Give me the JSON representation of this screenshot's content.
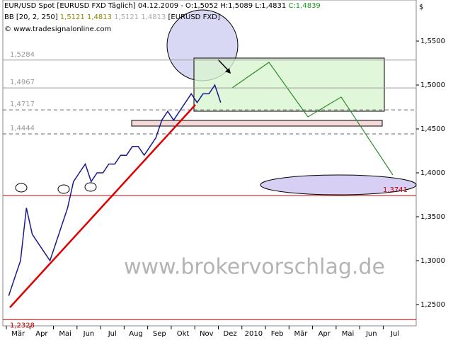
{
  "chart_data": {
    "type": "line",
    "header": {
      "line1": "EUR/USD Spot [EURUSD FXD  Täglich] 04.12.2009 - O:1,5052 H:1,5089 L:1,4831",
      "close": "C:1,4839",
      "indicator": "BB [20, 2, 250]",
      "bb_values": [
        "1,5121",
        "1,4813",
        "1,5121",
        "1,4813"
      ],
      "bb_symbol": "[EURUSD FXD]",
      "source": "© www.tradesignalonline.com"
    },
    "currency": "$",
    "watermark": "www.brokervorschlag.de",
    "categories": [
      "Mär",
      "Apr",
      "Mai",
      "Jun",
      "Jul",
      "Aug",
      "Sep",
      "Okt",
      "Nov",
      "Dez",
      "2010",
      "Feb",
      "Mär",
      "Apr",
      "Mai",
      "Jun",
      "Jul"
    ],
    "x": [
      0.1,
      0.35,
      0.6,
      0.85,
      1.1,
      1.35,
      1.6,
      1.85,
      2.1,
      2.35,
      2.6,
      2.85,
      3.1,
      3.35,
      3.6,
      3.85,
      4.1,
      4.35,
      4.6,
      4.85,
      5.1,
      5.35,
      5.6,
      5.85,
      6.1,
      6.35,
      6.6,
      6.85,
      7.1,
      7.35,
      7.6,
      7.85,
      8.1,
      8.35,
      8.6,
      8.85,
      9.1
    ],
    "series": [
      {
        "name": "EUR/USD",
        "color": "#1a1a8c",
        "values": [
          1.26,
          1.28,
          1.3,
          1.36,
          1.33,
          1.32,
          1.31,
          1.3,
          1.32,
          1.34,
          1.36,
          1.39,
          1.4,
          1.41,
          1.39,
          1.4,
          1.4,
          1.41,
          1.41,
          1.42,
          1.42,
          1.43,
          1.43,
          1.42,
          1.43,
          1.44,
          1.46,
          1.47,
          1.46,
          1.47,
          1.48,
          1.49,
          1.48,
          1.49,
          1.49,
          1.5,
          1.48
        ]
      }
    ],
    "levels": [
      {
        "value": 1.5284,
        "label": "1,5284",
        "color": "#999999",
        "dashed": false
      },
      {
        "value": 1.4967,
        "label": "1,4967",
        "color": "#999999",
        "dashed": false
      },
      {
        "value": 1.4717,
        "label": "1,4717",
        "color": "#666666",
        "dashed": true
      },
      {
        "value": 1.4444,
        "label": "1,4444",
        "color": "#666666",
        "dashed": true
      },
      {
        "value": 1.3741,
        "label": "1,3741",
        "color": "#cc0000",
        "dashed": false
      },
      {
        "value": 1.2328,
        "label": "1,2328",
        "color": "#cc0000",
        "dashed": false
      }
    ],
    "xlim": [
      -0.15,
      17.4
    ],
    "ylim": [
      1.2258,
      1.5968
    ],
    "yticks": [
      {
        "value": 1.25,
        "label": "1,2500"
      },
      {
        "value": 1.3,
        "label": "1,3000"
      },
      {
        "value": 1.35,
        "label": "1,3500"
      },
      {
        "value": 1.4,
        "label": "1,4000"
      },
      {
        "value": 1.45,
        "label": "1,4500"
      },
      {
        "value": 1.5,
        "label": "1,5000"
      },
      {
        "value": 1.55,
        "label": "1,5500"
      }
    ]
  }
}
